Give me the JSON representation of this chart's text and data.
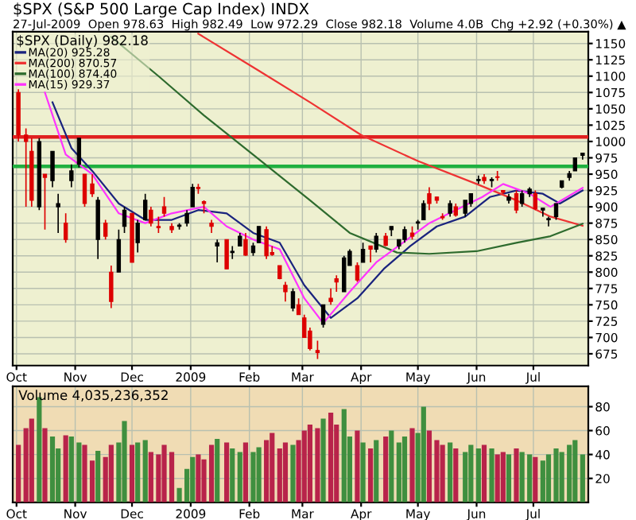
{
  "chart_data": [
    {
      "type": "candlestick",
      "title": "$SPX (S&P 500 Large Cap Index) INDX",
      "subtitle": "27-Jul-2009  Open 978.63  High 982.49  Low 972.29  Close 982.18  Volume 4.0B  Chg +2.92 (+0.30%) ▲",
      "legend_title": "$SPX (Daily) 982.18",
      "legend": "top left",
      "grid": true,
      "x": [
        "2008-10-02",
        "2008-10-06",
        "2008-10-09",
        "2008-10-13",
        "2008-10-16",
        "2008-10-20",
        "2008-10-23",
        "2008-10-27",
        "2008-10-30",
        "2008-11-03",
        "2008-11-06",
        "2008-11-10",
        "2008-11-13",
        "2008-11-17",
        "2008-11-20",
        "2008-11-24",
        "2008-11-27",
        "2008-12-01",
        "2008-12-04",
        "2008-12-08",
        "2008-12-11",
        "2008-12-15",
        "2008-12-18",
        "2008-12-22",
        "2008-12-26",
        "2008-12-30",
        "2009-01-02",
        "2009-01-05",
        "2009-01-08",
        "2009-01-12",
        "2009-01-15",
        "2009-01-20",
        "2009-01-23",
        "2009-01-27",
        "2009-01-30",
        "2009-02-03",
        "2009-02-06",
        "2009-02-10",
        "2009-02-13",
        "2009-02-17",
        "2009-02-20",
        "2009-02-24",
        "2009-02-27",
        "2009-03-02",
        "2009-03-05",
        "2009-03-09",
        "2009-03-12",
        "2009-03-16",
        "2009-03-19",
        "2009-03-23",
        "2009-03-26",
        "2009-03-30",
        "2009-04-02",
        "2009-04-06",
        "2009-04-09",
        "2009-04-14",
        "2009-04-17",
        "2009-04-21",
        "2009-04-24",
        "2009-04-28",
        "2009-05-01",
        "2009-05-04",
        "2009-05-07",
        "2009-05-11",
        "2009-05-14",
        "2009-05-18",
        "2009-05-21",
        "2009-05-26",
        "2009-05-29",
        "2009-06-02",
        "2009-06-05",
        "2009-06-09",
        "2009-06-12",
        "2009-06-15",
        "2009-06-18",
        "2009-06-22",
        "2009-06-25",
        "2009-06-29",
        "2009-07-02",
        "2009-07-06",
        "2009-07-09",
        "2009-07-13",
        "2009-07-16",
        "2009-07-20",
        "2009-07-23",
        "2009-07-27"
      ],
      "ohlc": [
        [
          1075,
          1080,
          1000,
          1010
        ],
        [
          1010,
          1020,
          900,
          1000
        ],
        [
          985,
          1005,
          900,
          910
        ],
        [
          900,
          1005,
          895,
          1000
        ],
        [
          950,
          950,
          865,
          945
        ],
        [
          940,
          985,
          930,
          985
        ],
        [
          900,
          920,
          860,
          905
        ],
        [
          875,
          890,
          845,
          850
        ],
        [
          940,
          965,
          930,
          955
        ],
        [
          965,
          1005,
          960,
          1005
        ],
        [
          950,
          950,
          900,
          905
        ],
        [
          935,
          950,
          915,
          920
        ],
        [
          850,
          915,
          820,
          910
        ],
        [
          875,
          880,
          850,
          855
        ],
        [
          800,
          810,
          745,
          755
        ],
        [
          800,
          865,
          800,
          850
        ],
        [
          870,
          900,
          860,
          895
        ],
        [
          890,
          890,
          815,
          815
        ],
        [
          845,
          880,
          830,
          875
        ],
        [
          880,
          920,
          880,
          910
        ],
        [
          895,
          900,
          870,
          875
        ],
        [
          870,
          885,
          860,
          868
        ],
        [
          900,
          915,
          885,
          890
        ],
        [
          870,
          875,
          860,
          865
        ],
        [
          870,
          875,
          865,
          872
        ],
        [
          875,
          895,
          870,
          890
        ],
        [
          900,
          935,
          900,
          930
        ],
        [
          930,
          935,
          920,
          928
        ],
        [
          908,
          910,
          890,
          905
        ],
        [
          875,
          880,
          860,
          870
        ],
        [
          840,
          850,
          815,
          845
        ],
        [
          850,
          850,
          805,
          805
        ],
        [
          830,
          840,
          820,
          832
        ],
        [
          840,
          860,
          840,
          855
        ],
        [
          850,
          860,
          825,
          826
        ],
        [
          830,
          845,
          825,
          840
        ],
        [
          845,
          870,
          845,
          870
        ],
        [
          865,
          870,
          820,
          825
        ],
        [
          830,
          840,
          825,
          827
        ],
        [
          810,
          810,
          789,
          790
        ],
        [
          780,
          785,
          755,
          770
        ],
        [
          745,
          775,
          740,
          770
        ],
        [
          750,
          760,
          735,
          735
        ],
        [
          730,
          735,
          700,
          700
        ],
        [
          710,
          715,
          680,
          683
        ],
        [
          680,
          695,
          667,
          677
        ],
        [
          720,
          750,
          715,
          750
        ],
        [
          760,
          775,
          750,
          755
        ],
        [
          790,
          795,
          770,
          785
        ],
        [
          770,
          825,
          770,
          822
        ],
        [
          810,
          835,
          810,
          832
        ],
        [
          810,
          815,
          785,
          788
        ],
        [
          815,
          845,
          815,
          835
        ],
        [
          840,
          840,
          815,
          835
        ],
        [
          835,
          860,
          830,
          855
        ],
        [
          855,
          860,
          840,
          841
        ],
        [
          865,
          870,
          855,
          870
        ],
        [
          840,
          850,
          835,
          850
        ],
        [
          850,
          870,
          845,
          865
        ],
        [
          860,
          870,
          850,
          855
        ],
        [
          875,
          880,
          865,
          877
        ],
        [
          880,
          910,
          880,
          905
        ],
        [
          920,
          930,
          895,
          905
        ],
        [
          915,
          915,
          905,
          910
        ],
        [
          885,
          890,
          880,
          883
        ],
        [
          890,
          910,
          885,
          905
        ],
        [
          900,
          905,
          885,
          887
        ],
        [
          890,
          910,
          885,
          910
        ],
        [
          905,
          920,
          900,
          920
        ],
        [
          940,
          948,
          935,
          942
        ],
        [
          945,
          950,
          935,
          940
        ],
        [
          940,
          945,
          930,
          942
        ],
        [
          946,
          955,
          940,
          945
        ],
        [
          925,
          925,
          920,
          922
        ],
        [
          910,
          920,
          905,
          915
        ],
        [
          920,
          925,
          890,
          895
        ],
        [
          905,
          925,
          900,
          920
        ],
        [
          920,
          930,
          915,
          927
        ],
        [
          920,
          925,
          895,
          897
        ],
        [
          895,
          898,
          885,
          898
        ],
        [
          880,
          885,
          870,
          882
        ],
        [
          885,
          905,
          880,
          905
        ],
        [
          930,
          940,
          928,
          940
        ],
        [
          945,
          955,
          940,
          951
        ],
        [
          955,
          975,
          955,
          975
        ],
        [
          978.63,
          982.49,
          972.29,
          982.18
        ]
      ],
      "colors": [
        "#dd0000",
        "#dd0000",
        "#dd0000",
        "#000000",
        "#dd0000",
        "#000000",
        "#000000",
        "#dd0000",
        "#000000",
        "#000000",
        "#dd0000",
        "#dd0000",
        "#000000",
        "#dd0000",
        "#dd0000",
        "#000000",
        "#000000",
        "#dd0000",
        "#000000",
        "#000000",
        "#dd0000",
        "#dd0000",
        "#dd0000",
        "#dd0000",
        "#000000",
        "#000000",
        "#000000",
        "#dd0000",
        "#dd0000",
        "#dd0000",
        "#000000",
        "#dd0000",
        "#000000",
        "#000000",
        "#dd0000",
        "#000000",
        "#000000",
        "#dd0000",
        "#dd0000",
        "#dd0000",
        "#dd0000",
        "#000000",
        "#dd0000",
        "#dd0000",
        "#dd0000",
        "#dd0000",
        "#000000",
        "#dd0000",
        "#dd0000",
        "#000000",
        "#000000",
        "#dd0000",
        "#000000",
        "#dd0000",
        "#000000",
        "#dd0000",
        "#000000",
        "#000000",
        "#000000",
        "#dd0000",
        "#000000",
        "#000000",
        "#dd0000",
        "#dd0000",
        "#dd0000",
        "#000000",
        "#dd0000",
        "#000000",
        "#000000",
        "#000000",
        "#dd0000",
        "#000000",
        "#dd0000",
        "#dd0000",
        "#000000",
        "#dd0000",
        "#000000",
        "#000000",
        "#dd0000",
        "#000000",
        "#000000",
        "#000000",
        "#000000",
        "#000000",
        "#000000",
        "#000000"
      ],
      "series": [
        {
          "type": "line",
          "name": "MA(20) 925.28",
          "color": "#1a237e",
          "x": [
            "2008-10-20",
            "2008-10-30",
            "2008-11-10",
            "2008-11-24",
            "2008-12-08",
            "2008-12-22",
            "2009-01-05",
            "2009-01-20",
            "2009-02-03",
            "2009-02-17",
            "2009-03-02",
            "2009-03-16",
            "2009-03-30",
            "2009-04-13",
            "2009-04-27",
            "2009-05-11",
            "2009-05-26",
            "2009-06-08",
            "2009-06-22",
            "2009-07-06",
            "2009-07-15",
            "2009-07-27"
          ],
          "values": [
            1060,
            990,
            955,
            905,
            880,
            880,
            895,
            890,
            860,
            845,
            780,
            730,
            760,
            805,
            840,
            870,
            885,
            915,
            925,
            920,
            905,
            925
          ]
        },
        {
          "type": "line",
          "name": "MA(200) 870.57",
          "color": "#ee3333",
          "x": [
            "2009-01-05",
            "2009-02-05",
            "2009-03-05",
            "2009-04-01",
            "2009-05-01",
            "2009-06-01",
            "2009-06-22",
            "2009-07-10",
            "2009-07-27"
          ],
          "values": [
            1165,
            1110,
            1060,
            1010,
            970,
            935,
            910,
            885,
            871
          ]
        },
        {
          "type": "line",
          "name": "MA(100) 874.40",
          "color": "#2e6b2e",
          "x": [
            "2008-11-20",
            "2008-12-15",
            "2009-01-08",
            "2009-02-05",
            "2009-03-05",
            "2009-03-26",
            "2009-04-20",
            "2009-05-07",
            "2009-06-01",
            "2009-06-22",
            "2009-07-10",
            "2009-07-27"
          ],
          "values": [
            1160,
            1100,
            1040,
            975,
            910,
            860,
            830,
            828,
            832,
            845,
            855,
            874
          ]
        },
        {
          "type": "line",
          "name": "MA(15) 929.37",
          "color": "#ff33ff",
          "x": [
            "2008-10-16",
            "2008-10-27",
            "2008-11-10",
            "2008-11-24",
            "2008-12-08",
            "2008-12-22",
            "2009-01-08",
            "2009-01-20",
            "2009-02-03",
            "2009-02-17",
            "2009-03-02",
            "2009-03-12",
            "2009-03-26",
            "2009-04-09",
            "2009-04-23",
            "2009-05-07",
            "2009-05-21",
            "2009-06-04",
            "2009-06-15",
            "2009-06-29",
            "2009-07-10",
            "2009-07-27"
          ],
          "values": [
            1075,
            980,
            950,
            890,
            875,
            890,
            900,
            870,
            850,
            835,
            760,
            722,
            770,
            815,
            845,
            875,
            895,
            915,
            935,
            920,
            900,
            929
          ]
        }
      ],
      "ref_lines": [
        {
          "axis": "y",
          "value": 1007,
          "color": "#e02020"
        },
        {
          "axis": "y",
          "value": 962,
          "color": "#20b040"
        }
      ],
      "xlim": [
        "2008-09-29",
        "2009-07-30"
      ],
      "xticks": [
        {
          "value": "2008-10-01",
          "label": "Oct"
        },
        {
          "value": "2008-11-01",
          "label": "Nov"
        },
        {
          "value": "2008-12-01",
          "label": "Dec"
        },
        {
          "value": "2009-01-01",
          "label": "2009"
        },
        {
          "value": "2009-02-01",
          "label": "Feb"
        },
        {
          "value": "2009-03-01",
          "label": "Mar"
        },
        {
          "value": "2009-04-01",
          "label": "Apr"
        },
        {
          "value": "2009-05-01",
          "label": "May"
        },
        {
          "value": "2009-06-01",
          "label": "Jun"
        },
        {
          "value": "2009-07-01",
          "label": "Jul"
        }
      ],
      "ylim": [
        657,
        1168
      ],
      "yticks": [
        675,
        700,
        725,
        750,
        775,
        800,
        825,
        850,
        875,
        900,
        925,
        950,
        975,
        1000,
        1025,
        1050,
        1075,
        1100,
        1125,
        1150
      ]
    },
    {
      "type": "bar",
      "legend_title": "Volume 4,035,236,352",
      "grid": true,
      "x": [
        "2008-10-02",
        "2008-10-06",
        "2008-10-09",
        "2008-10-13",
        "2008-10-16",
        "2008-10-20",
        "2008-10-23",
        "2008-10-27",
        "2008-10-30",
        "2008-11-03",
        "2008-11-06",
        "2008-11-10",
        "2008-11-13",
        "2008-11-17",
        "2008-11-20",
        "2008-11-24",
        "2008-11-27",
        "2008-12-01",
        "2008-12-04",
        "2008-12-08",
        "2008-12-11",
        "2008-12-15",
        "2008-12-18",
        "2008-12-22",
        "2008-12-26",
        "2008-12-30",
        "2009-01-02",
        "2009-01-05",
        "2009-01-08",
        "2009-01-12",
        "2009-01-15",
        "2009-01-20",
        "2009-01-23",
        "2009-01-27",
        "2009-01-30",
        "2009-02-03",
        "2009-02-06",
        "2009-02-10",
        "2009-02-13",
        "2009-02-17",
        "2009-02-20",
        "2009-02-24",
        "2009-02-27",
        "2009-03-02",
        "2009-03-05",
        "2009-03-09",
        "2009-03-12",
        "2009-03-16",
        "2009-03-19",
        "2009-03-23",
        "2009-03-26",
        "2009-03-30",
        "2009-04-02",
        "2009-04-06",
        "2009-04-09",
        "2009-04-14",
        "2009-04-17",
        "2009-04-21",
        "2009-04-24",
        "2009-04-28",
        "2009-05-01",
        "2009-05-04",
        "2009-05-07",
        "2009-05-11",
        "2009-05-14",
        "2009-05-18",
        "2009-05-21",
        "2009-05-26",
        "2009-05-29",
        "2009-06-02",
        "2009-06-05",
        "2009-06-09",
        "2009-06-12",
        "2009-06-15",
        "2009-06-18",
        "2009-06-22",
        "2009-06-25",
        "2009-06-29",
        "2009-07-02",
        "2009-07-06",
        "2009-07-09",
        "2009-07-13",
        "2009-07-16",
        "2009-07-20",
        "2009-07-23",
        "2009-07-27"
      ],
      "values": [
        48,
        62,
        70,
        88,
        62,
        55,
        45,
        56,
        55,
        50,
        48,
        35,
        43,
        38,
        48,
        50,
        68,
        48,
        50,
        52,
        42,
        40,
        48,
        42,
        12,
        28,
        38,
        40,
        36,
        48,
        53,
        50,
        45,
        42,
        50,
        42,
        46,
        52,
        58,
        45,
        50,
        48,
        52,
        60,
        65,
        62,
        70,
        75,
        65,
        78,
        55,
        60,
        50,
        45,
        52,
        55,
        60,
        50,
        55,
        62,
        58,
        80,
        60,
        52,
        48,
        50,
        45,
        42,
        48,
        45,
        48,
        45,
        40,
        42,
        40,
        45,
        42,
        40,
        38,
        35,
        40,
        45,
        42,
        48,
        52,
        40
      ],
      "colors": [
        "#b8234a",
        "#b8234a",
        "#b8234a",
        "#3f8f3f",
        "#b8234a",
        "#3f8f3f",
        "#3f8f3f",
        "#b8234a",
        "#3f8f3f",
        "#3f8f3f",
        "#b8234a",
        "#b8234a",
        "#3f8f3f",
        "#b8234a",
        "#b8234a",
        "#3f8f3f",
        "#3f8f3f",
        "#b8234a",
        "#3f8f3f",
        "#3f8f3f",
        "#b8234a",
        "#b8234a",
        "#b8234a",
        "#b8234a",
        "#3f8f3f",
        "#3f8f3f",
        "#3f8f3f",
        "#b8234a",
        "#b8234a",
        "#b8234a",
        "#3f8f3f",
        "#b8234a",
        "#3f8f3f",
        "#3f8f3f",
        "#b8234a",
        "#3f8f3f",
        "#3f8f3f",
        "#b8234a",
        "#b8234a",
        "#b8234a",
        "#b8234a",
        "#3f8f3f",
        "#b8234a",
        "#b8234a",
        "#b8234a",
        "#b8234a",
        "#3f8f3f",
        "#b8234a",
        "#b8234a",
        "#3f8f3f",
        "#3f8f3f",
        "#b8234a",
        "#3f8f3f",
        "#b8234a",
        "#3f8f3f",
        "#b8234a",
        "#3f8f3f",
        "#3f8f3f",
        "#3f8f3f",
        "#b8234a",
        "#3f8f3f",
        "#3f8f3f",
        "#b8234a",
        "#b8234a",
        "#b8234a",
        "#3f8f3f",
        "#b8234a",
        "#3f8f3f",
        "#3f8f3f",
        "#3f8f3f",
        "#b8234a",
        "#3f8f3f",
        "#b8234a",
        "#b8234a",
        "#3f8f3f",
        "#b8234a",
        "#3f8f3f",
        "#3f8f3f",
        "#b8234a",
        "#3f8f3f",
        "#3f8f3f",
        "#3f8f3f",
        "#3f8f3f",
        "#3f8f3f",
        "#3f8f3f",
        "#3f8f3f"
      ],
      "xlim": [
        "2008-09-29",
        "2009-07-30"
      ],
      "xticks": [
        {
          "value": "2008-10-01",
          "label": "Oct"
        },
        {
          "value": "2008-11-01",
          "label": "Nov"
        },
        {
          "value": "2008-12-01",
          "label": "Dec"
        },
        {
          "value": "2009-01-01",
          "label": "2009"
        },
        {
          "value": "2009-02-01",
          "label": "Feb"
        },
        {
          "value": "2009-03-01",
          "label": "Mar"
        },
        {
          "value": "2009-04-01",
          "label": "Apr"
        },
        {
          "value": "2009-05-01",
          "label": "May"
        },
        {
          "value": "2009-06-01",
          "label": "Jun"
        },
        {
          "value": "2009-07-01",
          "label": "Jul"
        }
      ],
      "ylim": [
        0,
        97
      ],
      "yticks": [
        20,
        40,
        60,
        80
      ]
    }
  ]
}
